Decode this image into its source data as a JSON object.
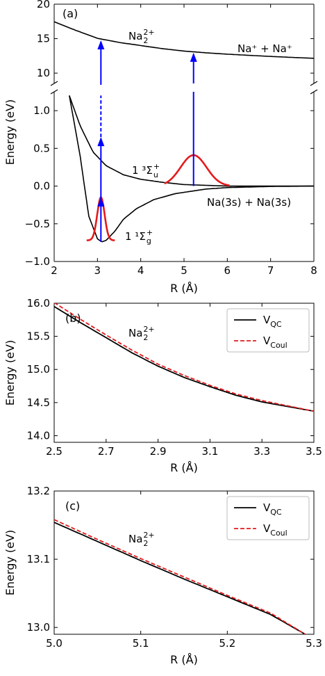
{
  "chart_data": [
    {
      "panel": "(a)",
      "type": "line",
      "xlabel": "R (Å)",
      "ylabel": "Energy (eV)",
      "xlim": [
        2,
        8
      ],
      "broken_y_axis": {
        "upper": [
          8.5,
          20
        ],
        "lower": [
          -1.0,
          1.25
        ]
      },
      "x_ticks": [
        "2",
        "3",
        "4",
        "5",
        "6",
        "7",
        "8"
      ],
      "y_ticks_upper": [
        "10",
        "15",
        "20"
      ],
      "y_ticks_lower": [
        "−1.0",
        "−0.5",
        "0.0",
        "0.5",
        "1.0"
      ],
      "annotations": {
        "na2": "Na",
        "na2_sub": "2",
        "na2_sup": "2+",
        "asymptote": "Na⁺ + Na⁺",
        "triplet": "1 ³Σ",
        "triplet_sub": "u",
        "triplet_sup": "+",
        "ground": "1 ¹Σ",
        "ground_sub": "g",
        "ground_sup": "+",
        "neutral_limit": "Na(3s) + Na(3s)"
      },
      "series": [
        {
          "role": "Na2 2+ Coulomb curve",
          "color": "#000000",
          "x": [
            2.0,
            2.5,
            3.0,
            3.5,
            4.0,
            4.5,
            5.0,
            5.5,
            6.0,
            6.5,
            7.0,
            7.5,
            8.0
          ],
          "y": [
            17.45,
            16.2,
            15.05,
            14.45,
            14.0,
            13.55,
            13.2,
            12.95,
            12.75,
            12.58,
            12.42,
            12.28,
            12.15
          ]
        },
        {
          "role": "1 3Σu+ curve",
          "color": "#000000",
          "x": [
            2.35,
            2.6,
            2.9,
            3.2,
            3.6,
            4.0,
            4.5,
            5.0,
            5.5,
            6.0,
            7.0,
            8.0
          ],
          "y": [
            1.2,
            0.8,
            0.45,
            0.27,
            0.15,
            0.09,
            0.05,
            0.02,
            0.01,
            0.0,
            0.0,
            0.0
          ]
        },
        {
          "role": "1 1Σg+ curve",
          "color": "#000000",
          "x": [
            2.35,
            2.6,
            2.8,
            3.0,
            3.1,
            3.2,
            3.4,
            3.6,
            3.9,
            4.3,
            4.8,
            5.5,
            6.0,
            7.0,
            8.0
          ],
          "y": [
            1.2,
            0.4,
            -0.4,
            -0.7,
            -0.74,
            -0.72,
            -0.6,
            -0.44,
            -0.3,
            -0.18,
            -0.1,
            -0.04,
            -0.02,
            -0.005,
            0.0
          ]
        },
        {
          "role": "ground vibrational wavepacket",
          "color": "#e41a1c",
          "center": 3.08,
          "sigma": 0.085,
          "baseline": -0.72,
          "peak": -0.15,
          "xrange": [
            2.75,
            3.4
          ]
        },
        {
          "role": "triplet vibrational wavepacket",
          "color": "#e41a1c",
          "center": 5.22,
          "sigma": 0.3,
          "baseline": 0.0,
          "peak": 0.41,
          "xrange": [
            4.55,
            6.05
          ]
        }
      ],
      "arrows": [
        {
          "x": 3.08,
          "color": "#0000ff",
          "from": -0.74,
          "heads": [
            -0.15,
            0.65
          ],
          "dashed_to_upper": 1.2,
          "to_upper": 14.75
        },
        {
          "x": 5.22,
          "color": "#0000ff",
          "from": 0.0,
          "to_upper": 12.95
        }
      ]
    },
    {
      "panel": "(b)",
      "type": "line",
      "xlabel": "R (Å)",
      "ylabel": "Energy (eV)",
      "xlim": [
        2.5,
        3.5
      ],
      "ylim": [
        13.9,
        16.0
      ],
      "x_ticks": [
        "2.5",
        "2.7",
        "2.9",
        "3.1",
        "3.3",
        "3.5"
      ],
      "y_ticks": [
        "14.0",
        "14.5",
        "15.0",
        "15.5",
        "16.0"
      ],
      "annotation": "Na",
      "annotation_sub": "2",
      "annotation_sup": "2+",
      "legend": "top-right",
      "series": [
        {
          "name": "V",
          "name_sub": "QC",
          "color": "#000000",
          "dash": "solid",
          "x": [
            2.5,
            2.6,
            2.7,
            2.8,
            2.9,
            3.0,
            3.1,
            3.2,
            3.3,
            3.4,
            3.5
          ],
          "y": [
            15.95,
            15.71,
            15.48,
            15.25,
            15.05,
            14.88,
            14.74,
            14.61,
            14.51,
            14.44,
            14.37
          ]
        },
        {
          "name": "V",
          "name_sub": "Coul",
          "color": "#e41a1c",
          "dash": "dashed",
          "x": [
            2.5,
            2.6,
            2.7,
            2.8,
            2.9,
            3.0,
            3.1,
            3.2,
            3.3,
            3.4,
            3.5
          ],
          "y": [
            16.01,
            15.76,
            15.52,
            15.29,
            15.08,
            14.91,
            14.76,
            14.63,
            14.53,
            14.45,
            14.37
          ]
        }
      ]
    },
    {
      "panel": "(c)",
      "type": "line",
      "xlabel": "R (Å)",
      "ylabel": "Energy (eV)",
      "xlim": [
        5.0,
        5.3
      ],
      "ylim": [
        12.99,
        13.2
      ],
      "x_ticks": [
        "5.0",
        "5.1",
        "5.2",
        "5.3"
      ],
      "y_ticks": [
        "13.0",
        "13.1",
        "13.2"
      ],
      "annotation": "Na",
      "annotation_sub": "2",
      "annotation_sup": "2+",
      "legend": "top-right",
      "series": [
        {
          "name": "V",
          "name_sub": "QC",
          "color": "#000000",
          "dash": "solid",
          "x": [
            5.0,
            5.05,
            5.1,
            5.15,
            5.2,
            5.25,
            5.29
          ],
          "y": [
            13.154,
            13.126,
            13.098,
            13.071,
            13.045,
            13.019,
            12.99
          ]
        },
        {
          "name": "V",
          "name_sub": "Coul",
          "color": "#e41a1c",
          "dash": "dashed",
          "x": [
            5.0,
            5.05,
            5.1,
            5.15,
            5.2,
            5.25,
            5.29
          ],
          "y": [
            13.158,
            13.129,
            13.101,
            13.074,
            13.047,
            13.021,
            12.99
          ]
        }
      ]
    }
  ]
}
